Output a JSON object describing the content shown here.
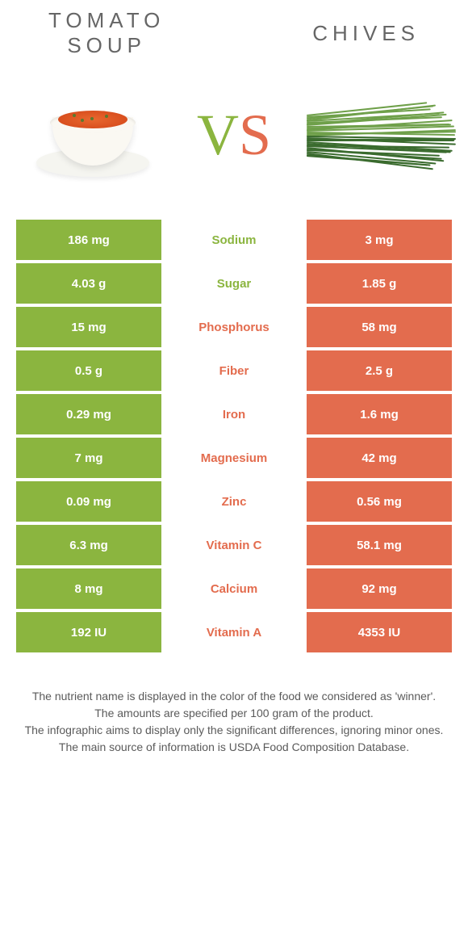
{
  "header": {
    "left_title_line1": "TOMATO",
    "left_title_line2": "SOUP",
    "right_title": "CHIVES",
    "vs_v": "V",
    "vs_s": "S"
  },
  "colors": {
    "green": "#8bb53f",
    "orange": "#e36c4e",
    "chive_dark": "#3a6b2e",
    "chive_light": "#6fa04a",
    "soup": "#e8682f"
  },
  "nutrients": [
    {
      "left": "186 mg",
      "label": "Sodium",
      "right": "3 mg",
      "winner": "green"
    },
    {
      "left": "4.03 g",
      "label": "Sugar",
      "right": "1.85 g",
      "winner": "green"
    },
    {
      "left": "15 mg",
      "label": "Phosphorus",
      "right": "58 mg",
      "winner": "orange"
    },
    {
      "left": "0.5 g",
      "label": "Fiber",
      "right": "2.5 g",
      "winner": "orange"
    },
    {
      "left": "0.29 mg",
      "label": "Iron",
      "right": "1.6 mg",
      "winner": "orange"
    },
    {
      "left": "7 mg",
      "label": "Magnesium",
      "right": "42 mg",
      "winner": "orange"
    },
    {
      "left": "0.09 mg",
      "label": "Zinc",
      "right": "0.56 mg",
      "winner": "orange"
    },
    {
      "left": "6.3 mg",
      "label": "Vitamin C",
      "right": "58.1 mg",
      "winner": "orange"
    },
    {
      "left": "8 mg",
      "label": "Calcium",
      "right": "92 mg",
      "winner": "orange"
    },
    {
      "left": "192 IU",
      "label": "Vitamin A",
      "right": "4353 IU",
      "winner": "orange"
    }
  ],
  "footnotes": [
    "The nutrient name is displayed in the color of the food we considered as 'winner'.",
    "The amounts are specified per 100 gram of the product.",
    "The infographic aims to display only the significant differences, ignoring minor ones.",
    "The main source of information is USDA Food Composition Database."
  ]
}
